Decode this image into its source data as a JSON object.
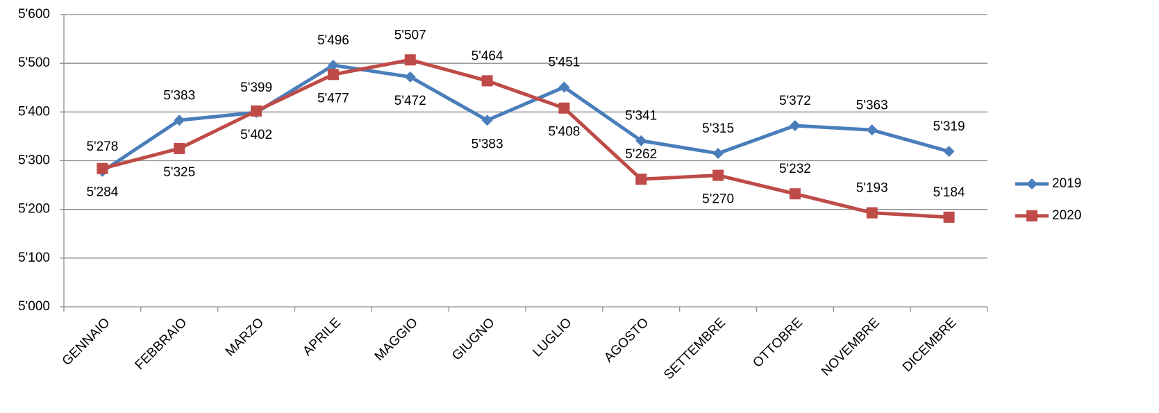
{
  "chart_data": {
    "type": "line",
    "categories": [
      "GENNAIO",
      "FEBBRAIO",
      "MARZO",
      "APRILE",
      "MAGGIO",
      "GIUGNO",
      "LUGLIO",
      "AGOSTO",
      "SETTEMBRE",
      "OTTOBRE",
      "NOVEMBRE",
      "DICEMBRE"
    ],
    "series": [
      {
        "name": "2019",
        "color": "#4a7ebb",
        "marker": "diamond",
        "values": [
          5278,
          5383,
          5399,
          5496,
          5472,
          5383,
          5451,
          5341,
          5315,
          5372,
          5363,
          5319
        ],
        "value_labels": [
          "5'278",
          "5'383",
          "5'399",
          "5'496",
          "5'472",
          "5'383",
          "5'451",
          "5'341",
          "5'315",
          "5'372",
          "5'363",
          "5'319"
        ]
      },
      {
        "name": "2020",
        "color": "#be4b48",
        "marker": "square",
        "values": [
          5284,
          5325,
          5402,
          5477,
          5507,
          5464,
          5408,
          5262,
          5270,
          5232,
          5193,
          5184
        ],
        "value_labels": [
          "5'284",
          "5'325",
          "5'402",
          "5'477",
          "5'507",
          "5'464",
          "5'408",
          "5'262",
          "5'270",
          "5'232",
          "5'193",
          "5'184"
        ]
      }
    ],
    "ylim": [
      5000,
      5600
    ],
    "yticks": [
      {
        "value": 5000,
        "label": "5'000"
      },
      {
        "value": 5100,
        "label": "5'100"
      },
      {
        "value": 5200,
        "label": "5'200"
      },
      {
        "value": 5300,
        "label": "5'300"
      },
      {
        "value": 5400,
        "label": "5'400"
      },
      {
        "value": 5500,
        "label": "5'500"
      },
      {
        "value": 5600,
        "label": "5'600"
      }
    ],
    "grid": true,
    "legend": "right"
  }
}
